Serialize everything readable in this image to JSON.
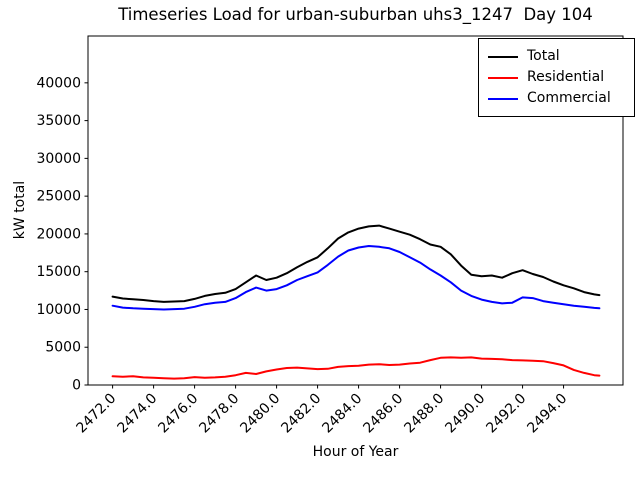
{
  "title": "Timeseries Load for urban-suburban uhs3_1247  Day 104",
  "axes": {
    "xlabel": "Hour of Year",
    "ylabel": "kW total",
    "x_ticks": [
      "2472.0",
      "2474.0",
      "2476.0",
      "2478.0",
      "2480.0",
      "2482.0",
      "2484.0",
      "2486.0",
      "2488.0",
      "2490.0",
      "2492.0",
      "2494.0"
    ],
    "y_ticks": [
      "0",
      "5000",
      "10000",
      "15000",
      "20000",
      "25000",
      "30000",
      "35000",
      "40000"
    ]
  },
  "legend": [
    {
      "label": "Total",
      "color": "#000000"
    },
    {
      "label": "Residential",
      "color": "#ff0000"
    },
    {
      "label": "Commercial",
      "color": "#0000ff"
    }
  ],
  "chart_data": {
    "type": "line",
    "title": "Timeseries Load for urban-suburban uhs3_1247  Day 104",
    "xlabel": "Hour of Year",
    "ylabel": "kW total",
    "xlim": [
      2470.8,
      2496.9
    ],
    "ylim": [
      0,
      46200
    ],
    "x_tick_values": [
      2472,
      2474,
      2476,
      2478,
      2480,
      2482,
      2484,
      2486,
      2488,
      2490,
      2492,
      2494
    ],
    "y_tick_values": [
      0,
      5000,
      10000,
      15000,
      20000,
      25000,
      30000,
      35000,
      40000
    ],
    "grid": false,
    "legend_position": "upper right",
    "x": [
      2472,
      2472.5,
      2473,
      2473.5,
      2474,
      2474.5,
      2475,
      2475.5,
      2476,
      2476.5,
      2477,
      2477.5,
      2478,
      2478.5,
      2479,
      2479.5,
      2480,
      2480.5,
      2481,
      2481.5,
      2482,
      2482.5,
      2483,
      2483.5,
      2484,
      2484.5,
      2485,
      2485.5,
      2486,
      2486.5,
      2487,
      2487.5,
      2488,
      2488.5,
      2489,
      2489.5,
      2490,
      2490.5,
      2491,
      2491.5,
      2492,
      2492.5,
      2493,
      2493.5,
      2494,
      2494.5,
      2495,
      2495.5,
      2495.75
    ],
    "series": [
      {
        "name": "Total",
        "color": "#000000",
        "values": [
          11700,
          11450,
          11350,
          11250,
          11100,
          11000,
          11050,
          11100,
          11400,
          11800,
          12050,
          12200,
          12700,
          13600,
          14500,
          13900,
          14200,
          14800,
          15600,
          16300,
          16900,
          18100,
          19400,
          20200,
          20700,
          21000,
          21100,
          20700,
          20300,
          19900,
          19300,
          18600,
          18300,
          17300,
          15800,
          14600,
          14400,
          14500,
          14200,
          14800,
          15200,
          14700,
          14300,
          13700,
          13200,
          12800,
          12300,
          12000,
          11900
        ]
      },
      {
        "name": "Residential",
        "color": "#ff0000",
        "values": [
          1150,
          1100,
          1150,
          1000,
          950,
          900,
          850,
          900,
          1050,
          950,
          1000,
          1100,
          1300,
          1600,
          1450,
          1800,
          2050,
          2250,
          2300,
          2200,
          2100,
          2150,
          2400,
          2500,
          2550,
          2700,
          2750,
          2650,
          2700,
          2850,
          2950,
          3300,
          3600,
          3650,
          3600,
          3650,
          3500,
          3450,
          3400,
          3300,
          3250,
          3200,
          3150,
          2900,
          2600,
          2000,
          1600,
          1300,
          1250
        ]
      },
      {
        "name": "Commercial",
        "color": "#0000ff",
        "values": [
          10500,
          10250,
          10150,
          10100,
          10050,
          10000,
          10050,
          10100,
          10350,
          10700,
          10900,
          11000,
          11500,
          12300,
          12900,
          12500,
          12700,
          13200,
          13900,
          14400,
          14900,
          15900,
          17000,
          17800,
          18200,
          18400,
          18300,
          18100,
          17600,
          16900,
          16200,
          15300,
          14500,
          13600,
          12500,
          11800,
          11300,
          11000,
          10800,
          10900,
          11600,
          11500,
          11100,
          10900,
          10700,
          10500,
          10350,
          10200,
          10150
        ]
      }
    ]
  }
}
